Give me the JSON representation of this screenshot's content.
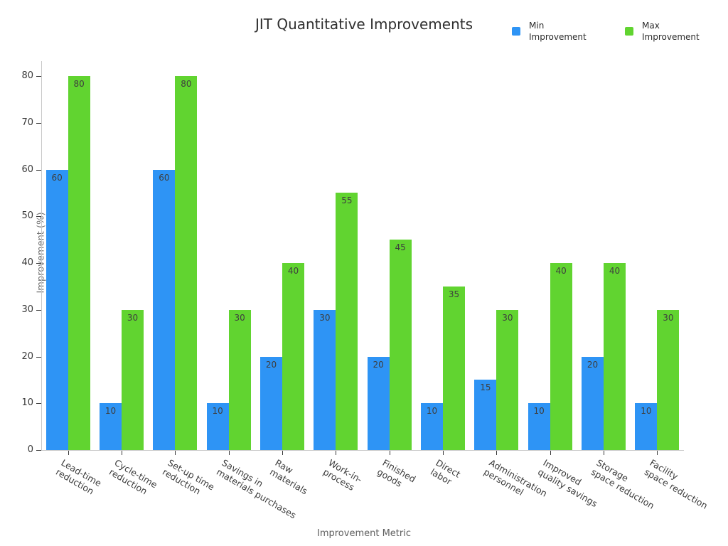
{
  "chart_data": {
    "type": "bar",
    "title": "JIT Quantitative Improvements",
    "xlabel": "Improvement Metric",
    "ylabel": "Improvement (%)",
    "ylim": [
      0,
      80
    ],
    "yticks": [
      0,
      10,
      20,
      30,
      40,
      50,
      60,
      70,
      80
    ],
    "grid": false,
    "legend_position": "top-right",
    "bar_value_labels": true,
    "categories": [
      {
        "label": "Lead-time reduction",
        "lines": [
          "Lead-time",
          "reduction"
        ]
      },
      {
        "label": "Cycle-time reduction",
        "lines": [
          "Cycle-time",
          "reduction"
        ]
      },
      {
        "label": "Set-up time reduction",
        "lines": [
          "Set-up time",
          "reduction"
        ]
      },
      {
        "label": "Savings in materials purchases",
        "lines": [
          "Savings in",
          "materials purchases"
        ]
      },
      {
        "label": "Raw materials",
        "lines": [
          "Raw",
          "materials"
        ]
      },
      {
        "label": "Work-in-process",
        "lines": [
          "Work-in-",
          "process"
        ]
      },
      {
        "label": "Finished goods",
        "lines": [
          "Finished",
          "goods"
        ]
      },
      {
        "label": "Direct labor",
        "lines": [
          "Direct",
          "labor"
        ]
      },
      {
        "label": "Administration personnel",
        "lines": [
          "Administration",
          "personnel"
        ]
      },
      {
        "label": "Improved quality savings",
        "lines": [
          "Improved",
          "quality savings"
        ]
      },
      {
        "label": "Storage space reduction",
        "lines": [
          "Storage",
          "space reduction"
        ]
      },
      {
        "label": "Facility space reduction",
        "lines": [
          "Facility",
          "space reduction"
        ]
      }
    ],
    "series": [
      {
        "name": "Min Improvement",
        "color": "#2e94f5",
        "values": [
          60,
          10,
          60,
          10,
          20,
          30,
          20,
          10,
          15,
          10,
          20,
          10
        ]
      },
      {
        "name": "Max Improvement",
        "color": "#61d430",
        "values": [
          80,
          30,
          80,
          30,
          40,
          55,
          45,
          35,
          30,
          40,
          40,
          30
        ]
      }
    ]
  }
}
